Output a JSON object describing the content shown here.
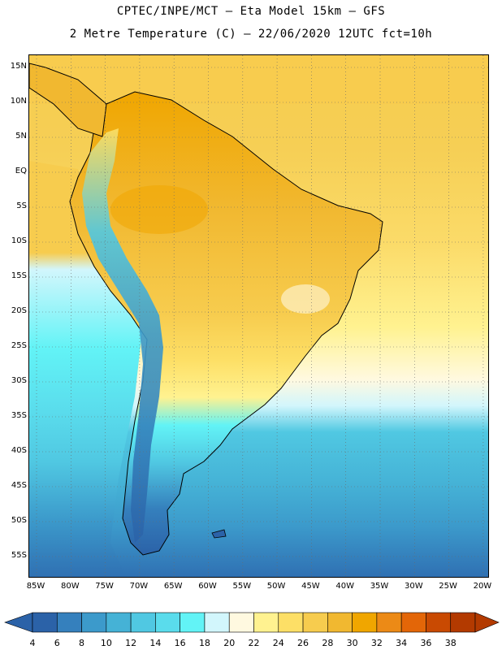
{
  "header": {
    "line1": "CPTEC/INPE/MCT –   Eta Model 15km – GFS",
    "line2": "2 Metre Temperature (C) – 22/06/2020 12UTC fct=10h"
  },
  "map": {
    "lat_labels": [
      "15N",
      "10N",
      "5N",
      "EQ",
      "5S",
      "10S",
      "15S",
      "20S",
      "25S",
      "30S",
      "35S",
      "40S",
      "45S",
      "50S",
      "55S"
    ],
    "lon_labels": [
      "85W",
      "80W",
      "75W",
      "70W",
      "65W",
      "60W",
      "55W",
      "50W",
      "45W",
      "40W",
      "35W",
      "30W",
      "25W",
      "20W"
    ]
  },
  "legend": {
    "colors": [
      "#2b62a8",
      "#3580bd",
      "#3c9acb",
      "#45b2d6",
      "#50c8e2",
      "#5adcec",
      "#62f3f6",
      "#d2f6fc",
      "#fff9e0",
      "#fff290",
      "#fddf66",
      "#f7cc4e",
      "#f1b830",
      "#f0a600",
      "#ec8a16",
      "#e36608",
      "#c94a02",
      "#b33a00"
    ],
    "labels": [
      "4",
      "6",
      "8",
      "10",
      "12",
      "14",
      "16",
      "18",
      "20",
      "22",
      "24",
      "26",
      "28",
      "30",
      "32",
      "34",
      "36",
      "38"
    ]
  }
}
